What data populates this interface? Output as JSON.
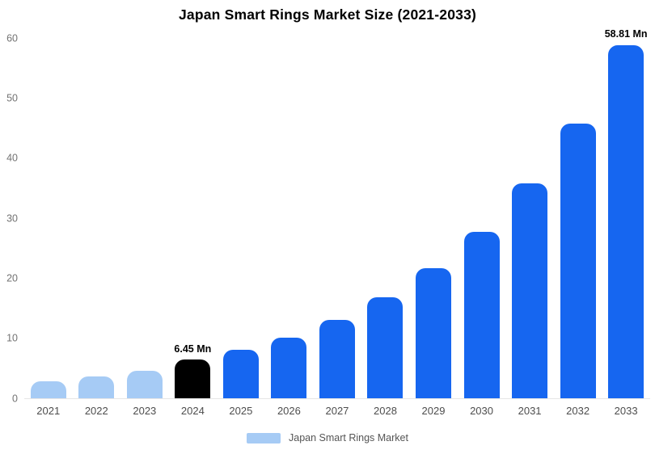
{
  "chart_data": {
    "type": "bar",
    "title": "Japan Smart Rings Market Size (2021-2033)",
    "series_name": "Japan Smart Rings Market",
    "categories": [
      "2021",
      "2022",
      "2023",
      "2024",
      "2025",
      "2026",
      "2027",
      "2028",
      "2029",
      "2030",
      "2031",
      "2032",
      "2033"
    ],
    "values": [
      2.8,
      3.7,
      4.6,
      6.45,
      8.1,
      10.1,
      13.0,
      16.8,
      21.6,
      27.7,
      35.8,
      45.7,
      58.81
    ],
    "unit": "Mn",
    "ylim": [
      0,
      60
    ],
    "yticks": [
      0,
      10,
      20,
      30,
      40,
      50,
      60
    ],
    "grid": false,
    "legend_position": "bottom",
    "colors": [
      "#A6CBF5",
      "#A6CBF5",
      "#A6CBF5",
      "#000000",
      "#1666F0",
      "#1666F0",
      "#1666F0",
      "#1666F0",
      "#1666F0",
      "#1666F0",
      "#1666F0",
      "#1666F0",
      "#1666F0"
    ],
    "annotations": [
      {
        "category": "2024",
        "text": "6.45 Mn"
      },
      {
        "category": "2033",
        "text": "58.81 Mn"
      }
    ]
  },
  "legend": {
    "label": "Japan Smart Rings Market",
    "swatch_color": "#A6CBF5"
  }
}
